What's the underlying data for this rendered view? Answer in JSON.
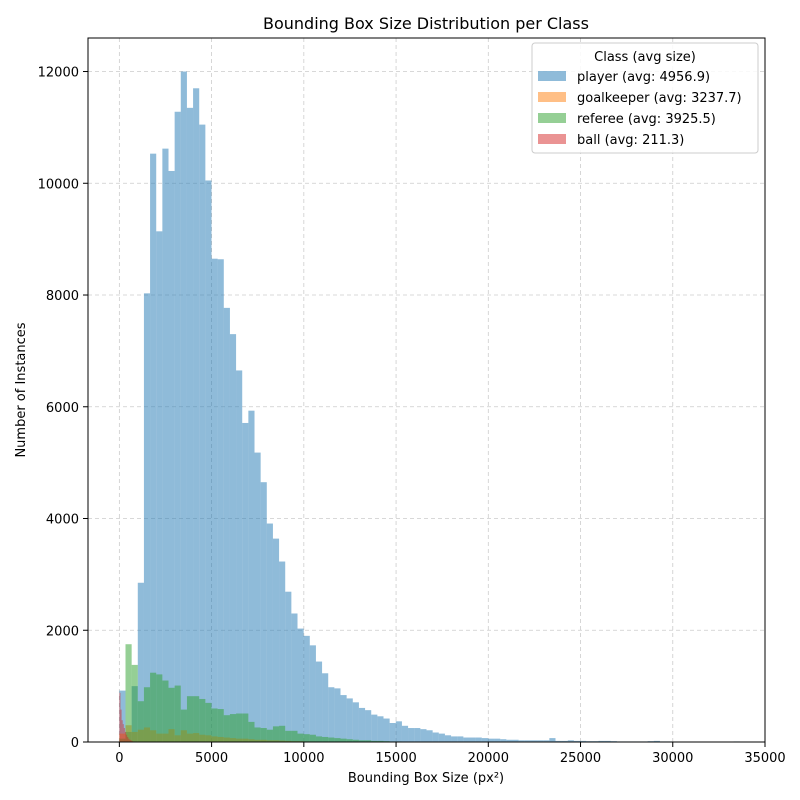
{
  "chart_data": {
    "type": "bar",
    "title": "Bounding Box Size Distribution per Class",
    "xlabel": "Bounding Box Size (px²)",
    "ylabel": "Number of Instances",
    "xlim": [
      -1700,
      35000
    ],
    "ylim": [
      0,
      12600
    ],
    "xticks": [
      0,
      5000,
      10000,
      15000,
      20000,
      25000,
      30000,
      35000
    ],
    "yticks": [
      0,
      2000,
      4000,
      6000,
      8000,
      10000,
      12000
    ],
    "grid": true,
    "legend": {
      "title": "Class (avg size)",
      "placement": "top-right"
    },
    "bin_width": 333,
    "series": [
      {
        "name": "player (avg: 4956.9)",
        "color": "#1f77b4",
        "bin_start": 0,
        "values": [
          920,
          180,
          1000,
          2850,
          8030,
          10530,
          9140,
          10620,
          10220,
          11280,
          12000,
          11350,
          11700,
          11050,
          10050,
          8650,
          8640,
          7770,
          7300,
          6650,
          5710,
          5930,
          5180,
          4650,
          3910,
          3640,
          3230,
          2690,
          2300,
          2030,
          1900,
          1730,
          1440,
          1230,
          980,
          960,
          840,
          780,
          710,
          610,
          570,
          490,
          460,
          420,
          340,
          370,
          290,
          250,
          250,
          230,
          210,
          170,
          150,
          120,
          100,
          100,
          80,
          80,
          80,
          70,
          60,
          60,
          50,
          40,
          40,
          30,
          30,
          30,
          30,
          30,
          70,
          20,
          20,
          30,
          20,
          20,
          15,
          15,
          20,
          20,
          15,
          10,
          10,
          10,
          10,
          10,
          15,
          20,
          10,
          10,
          5,
          5,
          5,
          5,
          5,
          5,
          5,
          5,
          5,
          5,
          10
        ]
      },
      {
        "name": "goalkeeper (avg: 3237.7)",
        "color": "#ff7f0e",
        "bin_start": 0,
        "values": [
          150,
          300,
          180,
          220,
          260,
          210,
          150,
          150,
          230,
          120,
          210,
          150,
          160,
          130,
          120,
          100,
          90,
          80,
          70,
          60,
          60,
          50,
          40,
          40,
          30,
          30,
          25,
          20,
          15,
          15,
          10,
          10,
          5,
          5,
          5
        ]
      },
      {
        "name": "referee (avg: 3925.5)",
        "color": "#2ca02c",
        "bin_start": 0,
        "values": [
          60,
          1750,
          1380,
          730,
          980,
          1240,
          1210,
          1100,
          970,
          1010,
          580,
          820,
          820,
          770,
          700,
          600,
          590,
          480,
          500,
          510,
          510,
          360,
          260,
          250,
          220,
          280,
          290,
          200,
          200,
          150,
          140,
          130,
          100,
          90,
          80,
          70,
          60,
          50,
          40,
          30,
          30,
          20,
          20,
          15,
          10,
          10,
          5,
          5
        ]
      },
      {
        "name": "ball (avg: 211.3)",
        "color": "#d62728",
        "bin_start": 0,
        "bin_width": 60,
        "values": [
          880,
          580,
          390,
          320,
          250,
          180,
          130,
          90,
          60,
          40,
          30,
          20
        ]
      }
    ]
  }
}
